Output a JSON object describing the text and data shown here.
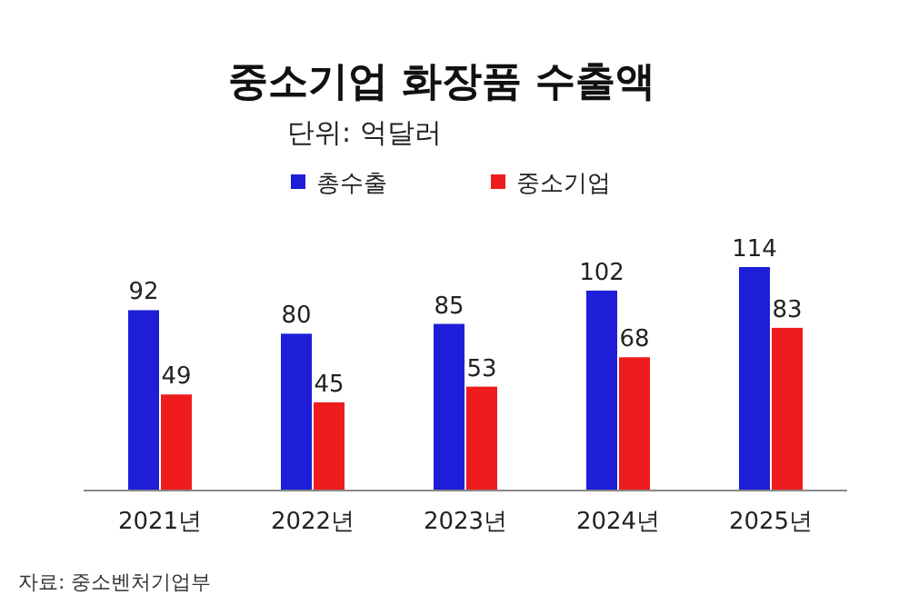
{
  "chart_data": {
    "type": "bar",
    "title": "중소기업 화장품 수출액",
    "subtitle": "단위: 억달러",
    "categories": [
      "2021년",
      "2022년",
      "2023년",
      "2024년",
      "2025년"
    ],
    "series": [
      {
        "name": "총수출",
        "color": "#1e1ed8",
        "values": [
          92,
          80,
          85,
          102,
          114
        ]
      },
      {
        "name": "중소기업",
        "color": "#ee1c1c",
        "values": [
          49,
          45,
          53,
          68,
          83
        ]
      }
    ],
    "data_labels": true,
    "legend": "top",
    "annotations": [
      "자료: 중소벤처기업부"
    ]
  }
}
